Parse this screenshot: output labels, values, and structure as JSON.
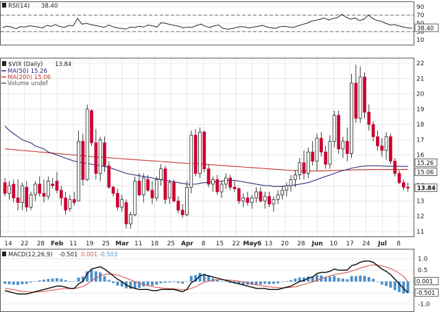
{
  "colors": {
    "up": "#ffffff",
    "down": "#cc0033",
    "wick": "#222222",
    "ma50": "#2b2b7a",
    "ma200": "#c0392b",
    "rsi": "#222222",
    "macd": "#111111",
    "signal": "#d9534f",
    "hist": "#4a8fc9",
    "grid": "#d9d9d9"
  },
  "chart_data": [
    {
      "panel": "rsi",
      "type": "line",
      "label_name": "RSI(14)",
      "label_value": "38.40",
      "yticks": [
        "90",
        "70",
        "50",
        "30",
        "10"
      ],
      "ylim": [
        10,
        90
      ],
      "levels": [
        70,
        30
      ],
      "last_label": "38.40",
      "values": [
        40,
        43,
        41,
        37,
        42,
        41,
        44,
        43,
        41,
        39,
        45,
        43,
        47,
        42,
        40,
        45,
        44,
        62,
        48,
        50,
        47,
        45,
        43,
        40,
        46,
        42,
        39,
        38,
        36,
        41,
        40,
        43,
        41,
        46,
        44,
        41,
        52,
        50,
        47,
        45,
        43,
        39,
        41,
        40,
        45,
        48,
        43,
        40,
        44,
        46,
        38,
        36,
        37,
        40,
        42,
        41,
        39,
        41,
        43,
        45,
        41,
        39,
        38,
        42,
        43,
        41,
        40,
        44,
        47,
        50,
        55,
        57,
        60,
        63,
        58,
        62,
        64,
        72,
        65,
        60,
        63,
        57,
        60,
        70,
        62,
        57,
        55,
        50,
        46,
        47,
        44,
        41,
        39,
        38.4
      ]
    },
    {
      "panel": "price",
      "type": "candlestick",
      "title": "$VIX (Daily)",
      "title_value": "13.84",
      "legend": [
        {
          "name": "MA(50)",
          "value": "15.26"
        },
        {
          "name": "MA(200)",
          "value": "15.06"
        },
        {
          "name": "Volume undef",
          "value": ""
        }
      ],
      "yticks": [
        "22",
        "21",
        "20",
        "19",
        "18",
        "17",
        "16",
        "15",
        "14",
        "13",
        "12",
        "11"
      ],
      "ylim": [
        11,
        22
      ],
      "x_labels": [
        {
          "label": "14",
          "bold": false
        },
        {
          "label": "22",
          "bold": false
        },
        {
          "label": "28",
          "bold": false
        },
        {
          "label": "Feb",
          "bold": true
        },
        {
          "label": "11",
          "bold": false
        },
        {
          "label": "19",
          "bold": false
        },
        {
          "label": "25",
          "bold": false
        },
        {
          "label": "Mar",
          "bold": true
        },
        {
          "label": "11",
          "bold": false
        },
        {
          "label": "18",
          "bold": false
        },
        {
          "label": "25",
          "bold": false
        },
        {
          "label": "Apr",
          "bold": true
        },
        {
          "label": "8",
          "bold": false
        },
        {
          "label": "15",
          "bold": false
        },
        {
          "label": "22",
          "bold": false
        },
        {
          "label": "May6",
          "bold": true
        },
        {
          "label": "13",
          "bold": false
        },
        {
          "label": "20",
          "bold": false
        },
        {
          "label": "28",
          "bold": false
        },
        {
          "label": "Jun",
          "bold": true
        },
        {
          "label": "10",
          "bold": false
        },
        {
          "label": "17",
          "bold": false
        },
        {
          "label": "24",
          "bold": false
        },
        {
          "label": "Jul",
          "bold": true
        },
        {
          "label": "8",
          "bold": false
        }
      ],
      "last_tags": [
        {
          "label": "15.26",
          "value": 15.26,
          "bold": false
        },
        {
          "label": "15.06",
          "value": 15.06,
          "bold": false
        },
        {
          "label": "13.84",
          "value": 13.84,
          "bold": true
        }
      ],
      "ohlc": [
        [
          14.2,
          14.5,
          13.3,
          13.5
        ],
        [
          13.5,
          14.3,
          13.1,
          14.0
        ],
        [
          14.1,
          14.4,
          12.9,
          13.2
        ],
        [
          13.2,
          14.4,
          12.4,
          12.9
        ],
        [
          12.9,
          14.2,
          12.4,
          14.0
        ],
        [
          13.9,
          14.3,
          12.3,
          12.6
        ],
        [
          12.6,
          13.6,
          12.4,
          13.4
        ],
        [
          13.4,
          14.3,
          13.0,
          14.1
        ],
        [
          14.1,
          14.6,
          13.3,
          13.5
        ],
        [
          13.5,
          14.4,
          12.9,
          13.3
        ],
        [
          13.3,
          14.6,
          13.1,
          14.3
        ],
        [
          14.1,
          14.5,
          13.8,
          14.0
        ],
        [
          14.3,
          14.9,
          13.5,
          13.7
        ],
        [
          13.7,
          14.0,
          12.7,
          13.2
        ],
        [
          13.2,
          13.6,
          12.1,
          12.4
        ],
        [
          12.5,
          13.4,
          12.3,
          13.1
        ],
        [
          13.1,
          13.6,
          12.7,
          12.9
        ],
        [
          13.0,
          17.6,
          13.0,
          16.9
        ],
        [
          16.9,
          17.4,
          14.0,
          14.4
        ],
        [
          14.4,
          19.3,
          14.3,
          19.0
        ],
        [
          18.9,
          19.0,
          16.6,
          16.8
        ],
        [
          16.8,
          17.7,
          14.4,
          14.8
        ],
        [
          14.8,
          17.2,
          14.3,
          17.0
        ],
        [
          16.8,
          17.2,
          14.9,
          15.3
        ],
        [
          15.3,
          15.6,
          13.8,
          13.9
        ],
        [
          13.9,
          14.0,
          13.3,
          13.5
        ],
        [
          13.5,
          13.8,
          12.4,
          12.6
        ],
        [
          12.6,
          13.4,
          12.3,
          13.1
        ],
        [
          12.9,
          13.1,
          11.2,
          11.5
        ],
        [
          11.5,
          12.3,
          11.2,
          12.1
        ],
        [
          12.1,
          14.6,
          12.0,
          14.3
        ],
        [
          14.3,
          14.8,
          13.3,
          13.4
        ],
        [
          13.4,
          14.8,
          12.9,
          14.5
        ],
        [
          14.4,
          14.7,
          13.6,
          13.7
        ],
        [
          13.7,
          14.3,
          12.8,
          13.2
        ],
        [
          13.2,
          14.6,
          13.0,
          14.4
        ],
        [
          14.4,
          15.4,
          14.0,
          15.1
        ],
        [
          15.1,
          15.3,
          12.8,
          13.1
        ],
        [
          13.2,
          14.4,
          12.8,
          14.2
        ],
        [
          14.2,
          14.4,
          12.9,
          13.0
        ],
        [
          13.0,
          13.3,
          12.2,
          12.4
        ],
        [
          12.4,
          12.8,
          11.9,
          12.1
        ],
        [
          12.1,
          14.3,
          12.0,
          13.9
        ],
        [
          13.9,
          17.6,
          13.5,
          17.3
        ],
        [
          17.3,
          17.7,
          14.6,
          14.8
        ],
        [
          14.8,
          17.8,
          14.5,
          17.5
        ],
        [
          17.5,
          17.6,
          14.9,
          15.1
        ],
        [
          15.1,
          15.4,
          13.9,
          14.1
        ],
        [
          14.1,
          14.6,
          13.6,
          14.4
        ],
        [
          14.4,
          14.7,
          13.4,
          13.6
        ],
        [
          13.6,
          14.3,
          13.2,
          14.1
        ],
        [
          14.1,
          14.8,
          13.8,
          14.5
        ],
        [
          14.5,
          14.7,
          13.7,
          13.9
        ],
        [
          13.9,
          14.3,
          13.6,
          13.8
        ],
        [
          13.8,
          13.9,
          12.8,
          13.0
        ],
        [
          13.0,
          13.5,
          12.6,
          13.2
        ],
        [
          13.2,
          13.6,
          12.7,
          12.9
        ],
        [
          12.9,
          13.4,
          12.5,
          13.2
        ],
        [
          13.2,
          13.9,
          12.9,
          13.6
        ],
        [
          13.6,
          13.9,
          12.9,
          13.0
        ],
        [
          13.0,
          13.6,
          12.5,
          13.3
        ],
        [
          13.3,
          13.6,
          12.6,
          12.8
        ],
        [
          12.8,
          13.3,
          12.3,
          13.1
        ],
        [
          13.1,
          13.7,
          12.8,
          13.4
        ],
        [
          13.4,
          14.0,
          13.1,
          13.7
        ],
        [
          13.7,
          14.2,
          13.3,
          14.0
        ],
        [
          14.0,
          14.7,
          13.6,
          14.4
        ],
        [
          14.4,
          15.0,
          13.9,
          14.7
        ],
        [
          14.7,
          15.8,
          14.4,
          15.5
        ],
        [
          15.5,
          16.3,
          14.4,
          14.8
        ],
        [
          14.8,
          16.5,
          14.5,
          16.2
        ],
        [
          16.2,
          16.9,
          15.3,
          15.6
        ],
        [
          15.6,
          17.4,
          15.0,
          17.1
        ],
        [
          17.1,
          17.5,
          15.9,
          16.2
        ],
        [
          16.2,
          16.6,
          15.1,
          15.4
        ],
        [
          15.4,
          17.3,
          15.1,
          16.9
        ],
        [
          16.9,
          18.9,
          16.5,
          18.6
        ],
        [
          18.6,
          18.9,
          16.1,
          16.4
        ],
        [
          16.4,
          17.2,
          15.8,
          16.9
        ],
        [
          16.9,
          17.8,
          15.6,
          16.1
        ],
        [
          16.1,
          21.3,
          15.8,
          20.7
        ],
        [
          20.7,
          21.9,
          18.1,
          18.4
        ],
        [
          18.4,
          21.8,
          18.1,
          21.1
        ],
        [
          21.1,
          21.4,
          18.4,
          18.8
        ],
        [
          18.8,
          19.3,
          17.6,
          18.0
        ],
        [
          18.0,
          18.2,
          16.9,
          17.2
        ],
        [
          17.2,
          17.6,
          16.3,
          16.6
        ],
        [
          16.6,
          17.1,
          15.9,
          16.3
        ],
        [
          16.3,
          17.5,
          15.7,
          17.2
        ],
        [
          17.2,
          17.4,
          15.4,
          15.6
        ],
        [
          15.6,
          15.8,
          14.6,
          14.8
        ],
        [
          14.8,
          15.0,
          14.1,
          14.2
        ],
        [
          14.2,
          14.4,
          13.7,
          13.9
        ],
        [
          13.9,
          14.2,
          13.6,
          13.84
        ]
      ],
      "ma50": [
        17.9,
        17.6,
        17.4,
        17.2,
        17.0,
        16.9,
        16.8,
        16.6,
        16.5,
        16.4,
        16.2,
        16.1,
        16.0,
        15.9,
        15.8,
        15.7,
        15.6,
        15.55,
        15.5,
        15.45,
        15.4,
        15.35,
        15.3,
        15.25,
        15.2,
        15.1,
        15.0,
        14.9,
        14.8,
        14.75,
        14.7,
        14.65,
        14.6,
        14.55,
        14.5,
        14.45,
        14.4,
        14.35,
        14.3,
        14.25,
        14.2,
        14.15,
        14.1,
        14.1,
        14.1,
        14.15,
        14.2,
        14.2,
        14.25,
        14.25,
        14.3,
        14.35,
        14.35,
        14.35,
        14.3,
        14.25,
        14.2,
        14.15,
        14.1,
        14.05,
        14.0,
        14.0,
        13.95,
        13.95,
        13.95,
        14.0,
        14.0,
        14.05,
        14.1,
        14.15,
        14.2,
        14.3,
        14.4,
        14.5,
        14.6,
        14.7,
        14.8,
        14.9,
        15.0,
        15.05,
        15.15,
        15.2,
        15.25,
        15.28,
        15.3,
        15.3,
        15.3,
        15.29,
        15.28,
        15.27,
        15.26,
        15.26,
        15.26,
        15.26
      ],
      "ma200": [
        16.4,
        16.38,
        16.35,
        16.33,
        16.3,
        16.28,
        16.25,
        16.23,
        16.2,
        16.18,
        16.15,
        16.13,
        16.1,
        16.08,
        16.05,
        16.03,
        16.0,
        15.98,
        15.95,
        15.93,
        15.9,
        15.88,
        15.86,
        15.84,
        15.82,
        15.8,
        15.78,
        15.76,
        15.74,
        15.72,
        15.7,
        15.68,
        15.66,
        15.64,
        15.62,
        15.6,
        15.58,
        15.56,
        15.54,
        15.52,
        15.5,
        15.48,
        15.46,
        15.45,
        15.44,
        15.42,
        15.4,
        15.38,
        15.36,
        15.34,
        15.32,
        15.3,
        15.28,
        15.26,
        15.24,
        15.22,
        15.2,
        15.18,
        15.16,
        15.14,
        15.12,
        15.1,
        15.08,
        15.06,
        15.04,
        15.02,
        15.0,
        14.99,
        14.98,
        14.97,
        14.96,
        14.96,
        14.96,
        14.96,
        14.97,
        14.98,
        14.99,
        15.0,
        15.01,
        15.02,
        15.03,
        15.04,
        15.05,
        15.05,
        15.06,
        15.06,
        15.06,
        15.06,
        15.06,
        15.06,
        15.06,
        15.06,
        15.06,
        15.06
      ]
    },
    {
      "panel": "macd",
      "type": "line",
      "label_name": "MACD(12,26,9)",
      "label_macd": "-0.501",
      "label_signal": "0.001",
      "label_hist": "-0.503",
      "yticks": [
        "1.0",
        "0.5",
        "0",
        "-0.5",
        "-1.0"
      ],
      "ylim": [
        -1.1,
        1.2
      ],
      "last_tags": [
        {
          "label": "0.001",
          "value": 0.001
        },
        {
          "label": "-0.501",
          "value": -0.501
        }
      ],
      "macd": [
        -0.4,
        -0.45,
        -0.5,
        -0.55,
        -0.55,
        -0.55,
        -0.5,
        -0.45,
        -0.4,
        -0.35,
        -0.3,
        -0.25,
        -0.2,
        -0.2,
        -0.25,
        -0.3,
        -0.3,
        -0.1,
        0.0,
        0.35,
        0.55,
        0.6,
        0.65,
        0.55,
        0.4,
        0.25,
        0.1,
        0.0,
        -0.15,
        -0.25,
        -0.3,
        -0.35,
        -0.35,
        -0.35,
        -0.4,
        -0.4,
        -0.35,
        -0.35,
        -0.35,
        -0.35,
        -0.4,
        -0.45,
        -0.35,
        -0.05,
        0.05,
        0.25,
        0.3,
        0.25,
        0.2,
        0.15,
        0.1,
        0.05,
        0.0,
        -0.05,
        -0.1,
        -0.15,
        -0.2,
        -0.25,
        -0.3,
        -0.3,
        -0.3,
        -0.35,
        -0.35,
        -0.35,
        -0.3,
        -0.25,
        -0.2,
        -0.1,
        0.0,
        0.05,
        0.15,
        0.2,
        0.35,
        0.4,
        0.4,
        0.45,
        0.55,
        0.5,
        0.5,
        0.5,
        0.7,
        0.75,
        0.85,
        0.9,
        0.9,
        0.85,
        0.7,
        0.55,
        0.45,
        0.3,
        0.1,
        -0.1,
        -0.3,
        -0.501
      ],
      "signal": [
        -0.3,
        -0.33,
        -0.36,
        -0.4,
        -0.43,
        -0.45,
        -0.46,
        -0.46,
        -0.45,
        -0.43,
        -0.41,
        -0.38,
        -0.35,
        -0.32,
        -0.31,
        -0.31,
        -0.31,
        -0.27,
        -0.22,
        -0.1,
        0.03,
        0.15,
        0.25,
        0.31,
        0.33,
        0.32,
        0.28,
        0.22,
        0.15,
        0.07,
        0.0,
        -0.07,
        -0.13,
        -0.18,
        -0.22,
        -0.26,
        -0.28,
        -0.3,
        -0.31,
        -0.32,
        -0.34,
        -0.36,
        -0.36,
        -0.3,
        -0.23,
        -0.13,
        -0.04,
        0.02,
        0.06,
        0.08,
        0.08,
        0.07,
        0.06,
        0.04,
        0.01,
        -0.02,
        -0.06,
        -0.1,
        -0.14,
        -0.17,
        -0.2,
        -0.23,
        -0.25,
        -0.27,
        -0.28,
        -0.27,
        -0.26,
        -0.23,
        -0.18,
        -0.13,
        -0.07,
        -0.02,
        0.06,
        0.13,
        0.19,
        0.24,
        0.3,
        0.34,
        0.37,
        0.4,
        0.46,
        0.52,
        0.59,
        0.65,
        0.7,
        0.73,
        0.72,
        0.69,
        0.64,
        0.57,
        0.48,
        0.36,
        0.23,
        0.001
      ]
    }
  ]
}
